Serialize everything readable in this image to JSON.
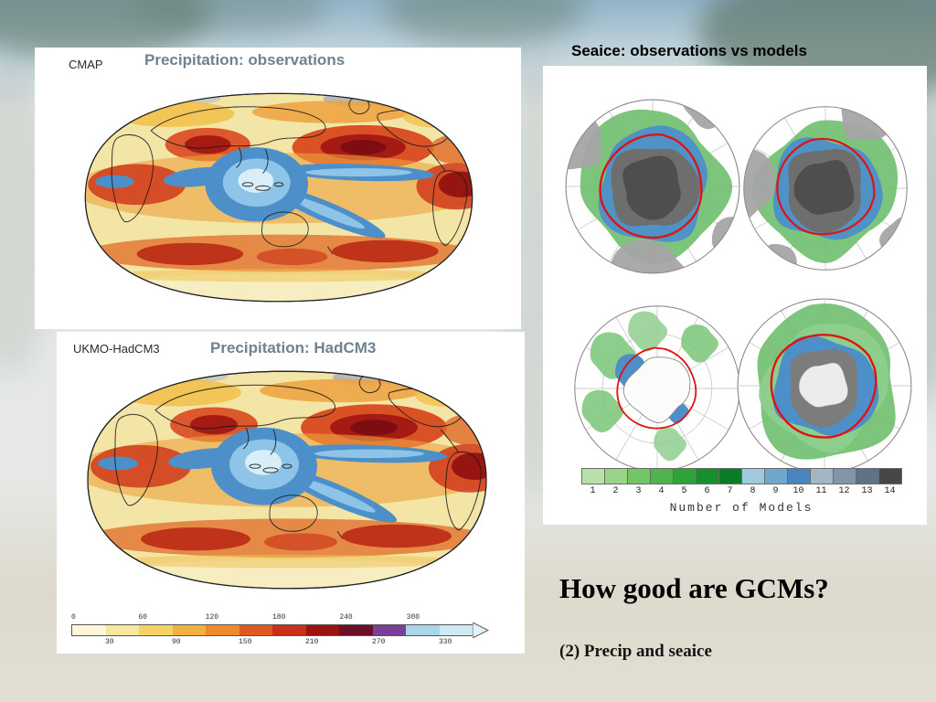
{
  "slide": {
    "panels": {
      "precip_obs": {
        "corner_label": "CMAP",
        "title": "Precipitation: observations"
      },
      "precip_model": {
        "corner_label": "UKMO-HadCM3",
        "title": "Precipitation: HadCM3",
        "colorbar": {
          "top_labels": [
            "0",
            "60",
            "120",
            "180",
            "240",
            "300"
          ],
          "bottom_labels": [
            "30",
            "90",
            "150",
            "210",
            "270",
            "330"
          ],
          "colors": [
            "#fdf6d8",
            "#f8e89e",
            "#f5d264",
            "#f2b13e",
            "#ec8a2c",
            "#e05a20",
            "#c93018",
            "#9b1210",
            "#6d0f26",
            "#7a4098",
            "#a9d6ea",
            "#cfe9f5"
          ],
          "arrow_color": "#e2f2fa"
        }
      },
      "seaice": {
        "title": "Seaice: observations vs models",
        "legend": {
          "values": [
            "1",
            "2",
            "3",
            "4",
            "5",
            "6",
            "7",
            "8",
            "9",
            "10",
            "11",
            "12",
            "13",
            "14"
          ],
          "colors": [
            "#b8e0a8",
            "#9ad489",
            "#74c468",
            "#4eb34c",
            "#2fa23a",
            "#188f2e",
            "#0a7c28",
            "#9fc9de",
            "#6fa8cc",
            "#4886bd",
            "#a2b6c6",
            "#8096a8",
            "#5e7486",
            "#474747"
          ],
          "label": "Number of Models"
        }
      }
    },
    "caption": {
      "heading": "How good are GCMs?",
      "subheading": "(2) Precip and seaice"
    }
  }
}
